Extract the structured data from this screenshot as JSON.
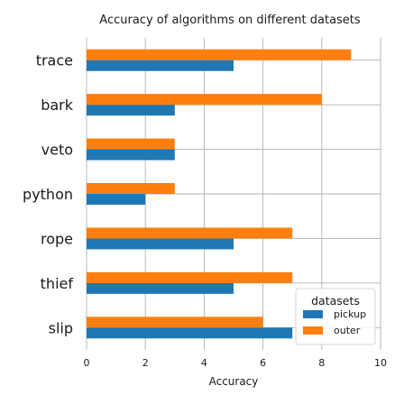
{
  "chart_data": {
    "type": "bar",
    "orientation": "horizontal",
    "title": "Accuracy of algorithms on different datasets",
    "xlabel": "Accuracy",
    "ylabel": "",
    "categories": [
      "slip",
      "thief",
      "rope",
      "python",
      "veto",
      "bark",
      "trace"
    ],
    "series": [
      {
        "name": "pickup",
        "color": "#1f77b4",
        "values": [
          7,
          5,
          5,
          2,
          3,
          3,
          5
        ]
      },
      {
        "name": "outer",
        "color": "#ff7f0e",
        "values": [
          6,
          7,
          7,
          3,
          3,
          8,
          9
        ]
      }
    ],
    "xlim": [
      0,
      10
    ],
    "xticks": [
      0,
      2,
      4,
      6,
      8,
      10
    ],
    "grid": true,
    "legend": {
      "title": "datasets",
      "placement": "bottom-right"
    }
  }
}
